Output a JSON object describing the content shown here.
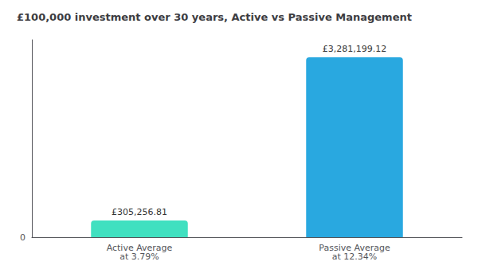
{
  "chart_data": {
    "type": "bar",
    "title": "£100,000 investment over 30 years, Active vs Passive Management",
    "categories": [
      "Active Average\nat 3.79%",
      "Passive Average\nat 12.34%"
    ],
    "values": [
      305256.81,
      3281199.12
    ],
    "value_labels": [
      "£305,256.81",
      "£3,281,199.12"
    ],
    "data_labels": true,
    "colors": [
      "#40e0c0",
      "#29a8e0"
    ],
    "ylim": [
      0,
      3600000
    ],
    "yticks": [
      0
    ],
    "grid": true
  }
}
